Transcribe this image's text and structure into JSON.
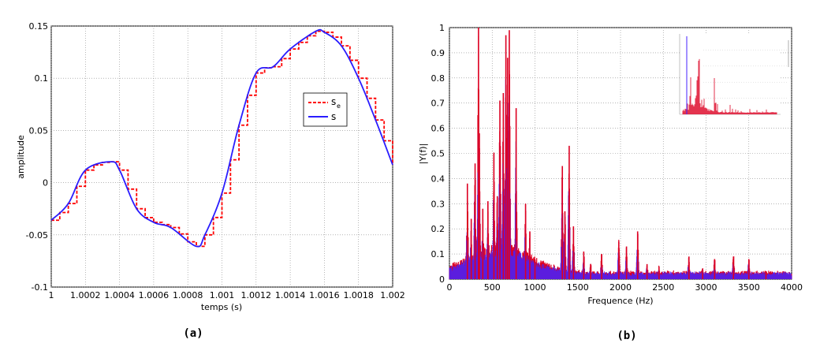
{
  "colors": {
    "estimated": "#ff0000",
    "signal": "#2a1cff",
    "spectrum_blue": "#4422ff",
    "spectrum_red": "#dd0022",
    "grid": "#888888"
  },
  "chart_data": [
    {
      "type": "line",
      "caption": "(a)",
      "xlabel": "temps (s)",
      "ylabel": "amplitude",
      "xlim": [
        1,
        1.002
      ],
      "ylim": [
        -0.1,
        0.15
      ],
      "xticks": [
        "1",
        "1.0002",
        "1.0004",
        "1.0006",
        "1.0008",
        "1.001",
        "1.0012",
        "1.0014",
        "1.0016",
        "1.0018",
        "1.002"
      ],
      "yticks": [
        "-0.1",
        "-0.05",
        "0",
        "0.05",
        "0.1",
        "0.15"
      ],
      "grid": true,
      "legend_position": "right",
      "series": [
        {
          "name": "s",
          "name_subscript": "e",
          "style": "dashed",
          "color": "#ff0000",
          "x": [
            1,
            1.0001,
            1.0002,
            1.00035,
            1.0004,
            1.0005,
            1.0006,
            1.0007,
            1.00085,
            1.0009,
            1.001,
            1.0011,
            1.0012,
            1.0013,
            1.0014,
            1.00155,
            1.0016,
            1.0017,
            1.0018,
            1.0019,
            1.002
          ],
          "y": [
            -0.036,
            -0.02,
            0.012,
            0.02,
            0.012,
            -0.025,
            -0.038,
            -0.043,
            -0.061,
            -0.05,
            -0.01,
            0.055,
            0.105,
            0.111,
            0.128,
            0.145,
            0.144,
            0.131,
            0.1,
            0.06,
            0.017
          ]
        },
        {
          "name": "s",
          "style": "solid",
          "color": "#2a1cff",
          "x": [
            1,
            1.0001,
            1.0002,
            1.00035,
            1.0004,
            1.0005,
            1.0006,
            1.0007,
            1.00085,
            1.0009,
            1.001,
            1.0011,
            1.0012,
            1.0013,
            1.0014,
            1.00155,
            1.0016,
            1.0017,
            1.0018,
            1.0019,
            1.002
          ],
          "y": [
            -0.036,
            -0.02,
            0.012,
            0.02,
            0.012,
            -0.025,
            -0.038,
            -0.043,
            -0.061,
            -0.05,
            -0.01,
            0.055,
            0.105,
            0.111,
            0.128,
            0.145,
            0.144,
            0.131,
            0.1,
            0.06,
            0.017
          ]
        }
      ]
    },
    {
      "type": "line",
      "caption": "(b)",
      "xlabel": "Frequence (Hz)",
      "ylabel": "|Y(f)|",
      "xlim": [
        0,
        4000
      ],
      "ylim": [
        0,
        1
      ],
      "xticks": [
        "0",
        "500",
        "1000",
        "1500",
        "2000",
        "2500",
        "3000",
        "3500",
        "4000"
      ],
      "yticks": [
        "0",
        "0.1",
        "0.2",
        "0.3",
        "0.4",
        "0.5",
        "0.6",
        "0.7",
        "0.8",
        "0.9",
        "1"
      ],
      "grid": true,
      "peaks": {
        "freq": [
          210,
          255,
          300,
          340,
          350,
          390,
          450,
          520,
          560,
          590,
          630,
          660,
          680,
          700,
          780,
          890,
          940,
          1000,
          1320,
          1350,
          1400,
          1450,
          1570,
          1650,
          1780,
          1980,
          2070,
          2200,
          2310,
          2450,
          2800,
          2960,
          3100,
          3320,
          3500,
          3700
        ],
        "amp": [
          0.38,
          0.24,
          0.46,
          1.0,
          0.58,
          0.28,
          0.31,
          0.5,
          0.33,
          0.71,
          0.74,
          0.97,
          0.88,
          0.99,
          0.68,
          0.3,
          0.19,
          0.08,
          0.45,
          0.27,
          0.53,
          0.21,
          0.11,
          0.06,
          0.1,
          0.15,
          0.13,
          0.19,
          0.06,
          0.05,
          0.09,
          0.04,
          0.08,
          0.09,
          0.08,
          0.03
        ]
      }
    }
  ]
}
